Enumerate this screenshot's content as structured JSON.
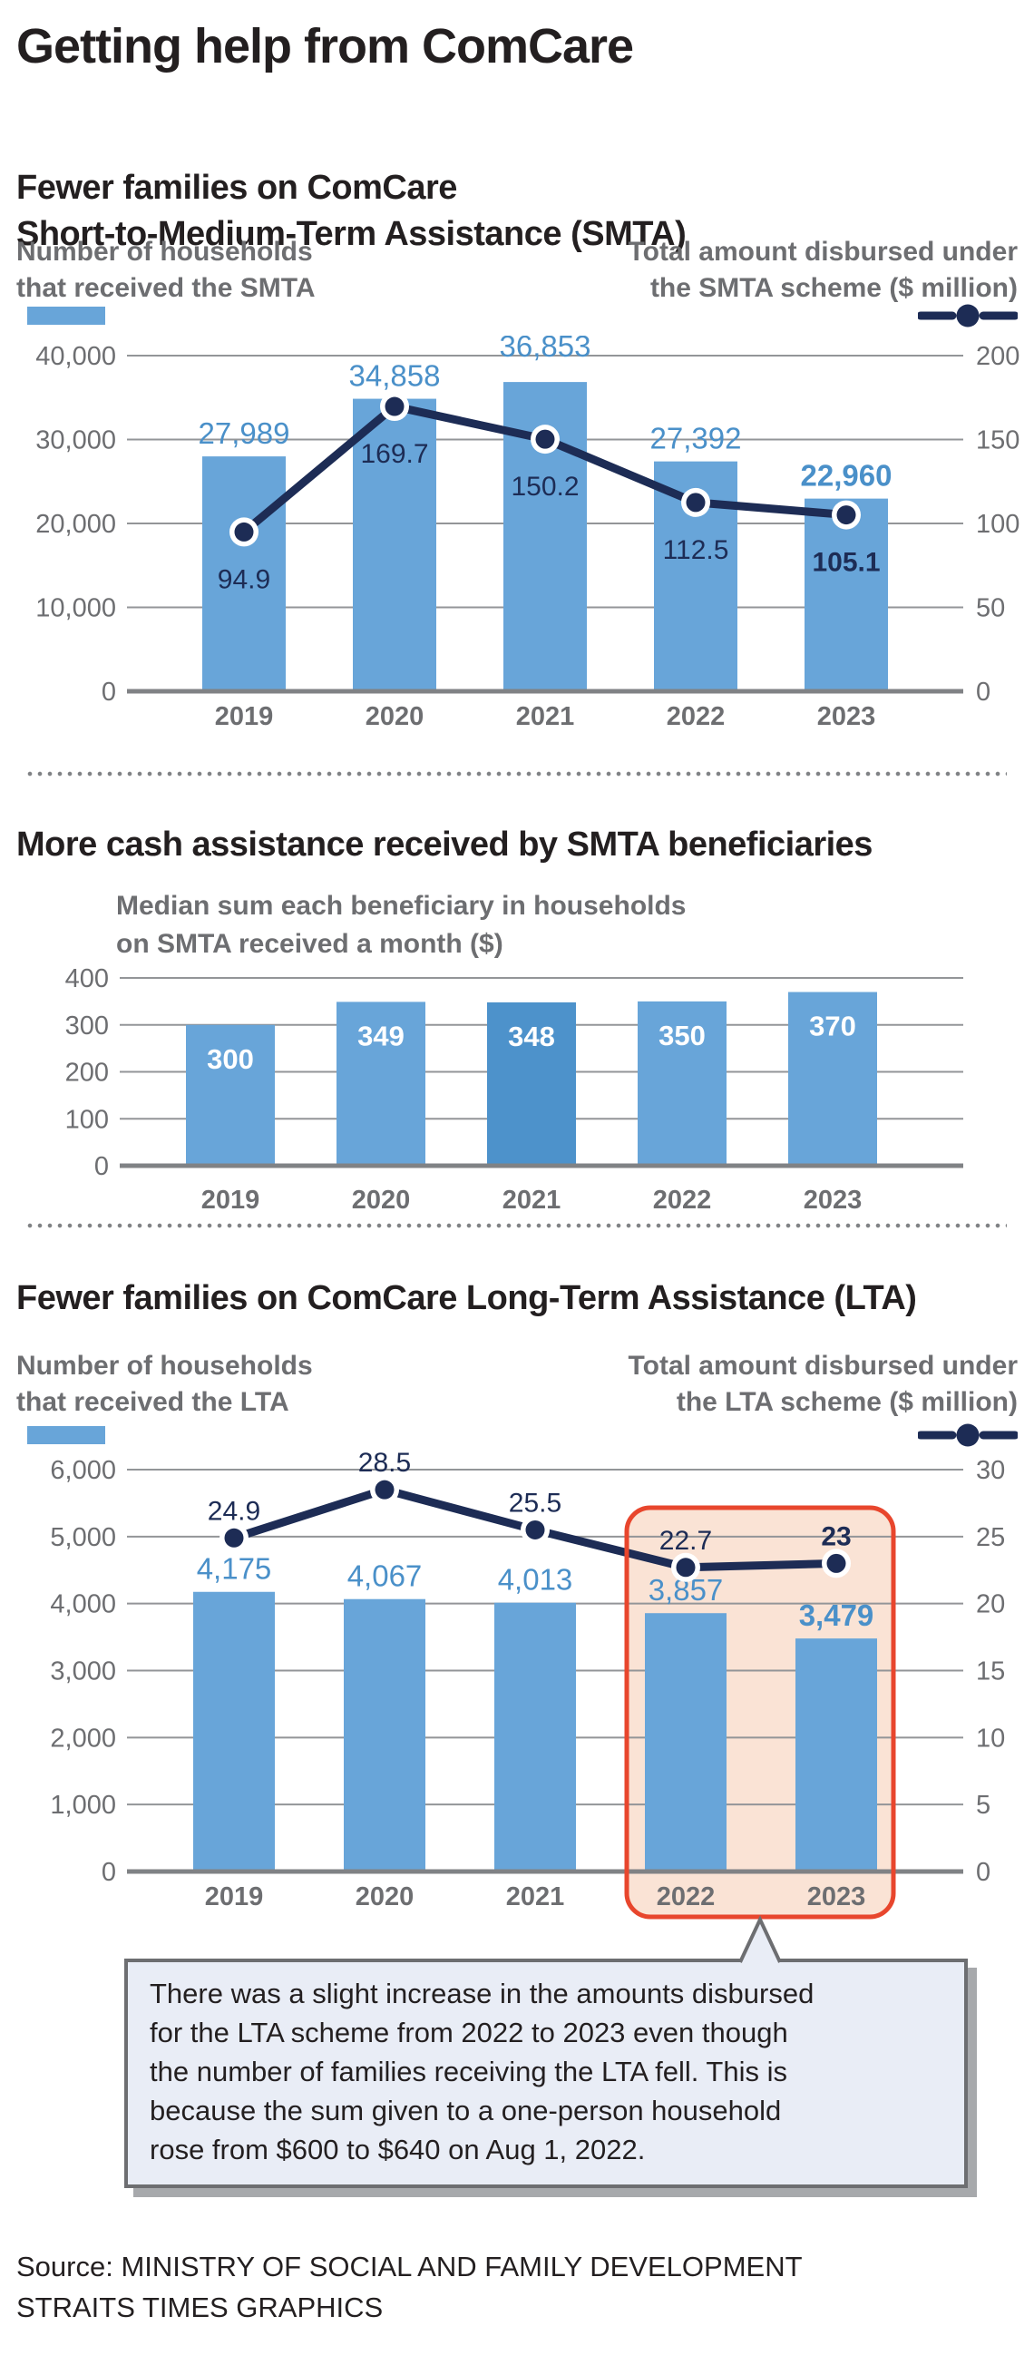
{
  "page": {
    "title": "Getting help from ComCare"
  },
  "colors": {
    "bar_blue": "#68A5D9",
    "bar_blue_dark": "#4D92CB",
    "bar_label_blue": "#4A90C9",
    "navy": "#1D2C55",
    "gray_text": "#6D6E71",
    "dark_text": "#231F20",
    "grid": "#939598",
    "axis": "#808285",
    "highlight_border": "#E8462D",
    "highlight_fill": "#FAE3D5",
    "callout_fill": "#E9EDF6",
    "callout_border": "#6D6E71",
    "callout_shadow": "#A7A9AC",
    "divider_dot": "#808285"
  },
  "smta": {
    "heading_line1": "Fewer families on ComCare",
    "heading_line2": "Short-to-Medium-Term Assistance (SMTA)",
    "left_label_line1": "Number of households",
    "left_label_line2": "that received the SMTA",
    "right_label_line1": "Total amount disbursed under",
    "right_label_line2": "the SMTA scheme ($ million)"
  },
  "median": {
    "heading": "More cash assistance received by SMTA beneficiaries",
    "label_line1": "Median sum each beneficiary in households",
    "label_line2": "on SMTA received a month ($)"
  },
  "lta": {
    "heading": "Fewer families on ComCare Long-Term Assistance (LTA)",
    "left_label_line1": "Number of households",
    "left_label_line2": "that received the LTA",
    "right_label_line1": "Total amount disbursed under",
    "right_label_line2": "the LTA scheme ($ million)"
  },
  "callout": {
    "lines": [
      "There was a slight increase in the amounts disbursed",
      "for the LTA scheme from 2022 to 2023 even though",
      "the number of families receiving the LTA fell. This is",
      "because the sum given to a one-person household",
      "rose from $600 to $640 on Aug 1, 2022."
    ]
  },
  "source": {
    "line1": "Source: MINISTRY OF SOCIAL AND FAMILY DEVELOPMENT",
    "line2": "STRAITS TIMES GRAPHICS"
  },
  "chart_data": [
    {
      "id": "smta_chart",
      "type": "bar+line",
      "title": "Fewer families on ComCare Short-to-Medium-Term Assistance (SMTA)",
      "categories": [
        "2019",
        "2020",
        "2021",
        "2022",
        "2023"
      ],
      "series": [
        {
          "name": "Number of households that received the SMTA",
          "type": "bar",
          "axis": "left",
          "values": [
            27989,
            34858,
            36853,
            27392,
            22960
          ],
          "labels": [
            "27,989",
            "34,858",
            "36,853",
            "27,392",
            "22,960"
          ],
          "emphasis_index": 4
        },
        {
          "name": "Total amount disbursed under the SMTA scheme ($ million)",
          "type": "line",
          "axis": "right",
          "values": [
            94.9,
            169.7,
            150.2,
            112.5,
            105.1
          ],
          "labels": [
            "94.9",
            "169.7",
            "150.2",
            "112.5",
            "105.1"
          ],
          "emphasis_index": 4,
          "label_position": "below"
        }
      ],
      "left_axis": {
        "max": 40000,
        "ticks": [
          40000,
          30000,
          20000,
          10000,
          0
        ],
        "tick_labels": [
          "40,000",
          "30,000",
          "20,000",
          "10,000",
          "0"
        ]
      },
      "right_axis": {
        "max": 200,
        "ticks": [
          200,
          150,
          100,
          50,
          0
        ],
        "tick_labels": [
          "200",
          "150",
          "100",
          "50",
          "0"
        ]
      },
      "grid": true,
      "legend_position": "top"
    },
    {
      "id": "median_chart",
      "type": "bar",
      "title": "Median sum each beneficiary in households on SMTA received a month ($)",
      "categories": [
        "2019",
        "2020",
        "2021",
        "2022",
        "2023"
      ],
      "values": [
        300,
        349,
        348,
        350,
        370
      ],
      "labels": [
        "300",
        "349",
        "348",
        "350",
        "370"
      ],
      "bar_colors": [
        "#68A5D9",
        "#68A5D9",
        "#4D92CB",
        "#68A5D9",
        "#68A5D9"
      ],
      "left_axis": {
        "max": 400,
        "ticks": [
          400,
          300,
          200,
          100,
          0
        ],
        "tick_labels": [
          "400",
          "300",
          "200",
          "100",
          "0"
        ]
      },
      "grid": true
    },
    {
      "id": "lta_chart",
      "type": "bar+line",
      "title": "Fewer families on ComCare Long-Term Assistance (LTA)",
      "categories": [
        "2019",
        "2020",
        "2021",
        "2022",
        "2023"
      ],
      "series": [
        {
          "name": "Number of households that received the LTA",
          "type": "bar",
          "axis": "left",
          "values": [
            4175,
            4067,
            4013,
            3857,
            3479
          ],
          "labels": [
            "4,175",
            "4,067",
            "4,013",
            "3,857",
            "3,479"
          ],
          "emphasis_index": 4
        },
        {
          "name": "Total amount disbursed under the LTA scheme ($ million)",
          "type": "line",
          "axis": "right",
          "values": [
            24.9,
            28.5,
            25.5,
            22.7,
            23
          ],
          "labels": [
            "24.9",
            "28.5",
            "25.5",
            "22.7",
            "23"
          ],
          "emphasis_index": 4,
          "label_position": "above"
        }
      ],
      "left_axis": {
        "max": 6000,
        "ticks": [
          6000,
          5000,
          4000,
          3000,
          2000,
          1000,
          0
        ],
        "tick_labels": [
          "6,000",
          "5,000",
          "4,000",
          "3,000",
          "2,000",
          "1,000",
          "0"
        ]
      },
      "right_axis": {
        "max": 30,
        "ticks": [
          30,
          25,
          20,
          15,
          10,
          5,
          0
        ],
        "tick_labels": [
          "30",
          "25",
          "20",
          "15",
          "10",
          "5",
          "0"
        ]
      },
      "highlight": {
        "categories": [
          "2022",
          "2023"
        ]
      },
      "grid": true
    }
  ]
}
